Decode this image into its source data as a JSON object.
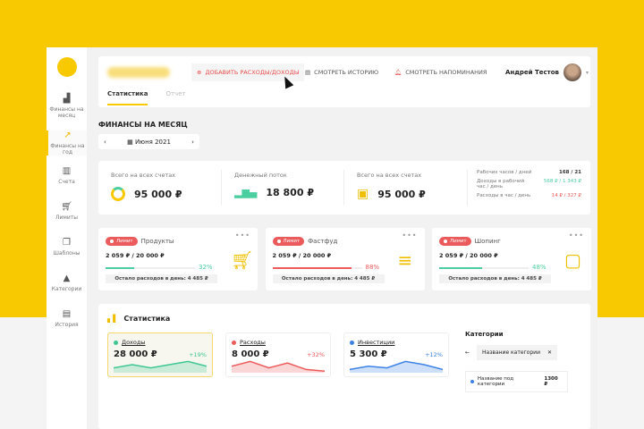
{
  "sidebar": {
    "items": [
      {
        "icon": "chart-bar-icon",
        "label": "Финансы на месяц"
      },
      {
        "icon": "chart-growth-icon",
        "label": "Финансы на год",
        "active": true
      },
      {
        "icon": "book-icon",
        "label": "Счета"
      },
      {
        "icon": "cart-icon",
        "label": "Лимиты"
      },
      {
        "icon": "documents-icon",
        "label": "Шаблоны"
      },
      {
        "icon": "shapes-icon",
        "label": "Категории"
      },
      {
        "icon": "history-icon",
        "label": "История"
      }
    ]
  },
  "header": {
    "add_label": "Добавить расходы/доходы",
    "history_label": "Смотреть историю",
    "reminders_label": "Смотреть напоминания",
    "user": "Андрей Тестов",
    "tabs": [
      "Статистика",
      "Отчет"
    ]
  },
  "page_title": "ФИНАНСЫ НА МЕСЯЦ",
  "date": {
    "value": "Июня 2021",
    "prev": "‹",
    "next": "›"
  },
  "summary": {
    "cols": [
      {
        "label": "Всего на всех счетах",
        "value": "95 000 ₽"
      },
      {
        "label": "Денежный поток",
        "value": "18 800 ₽"
      },
      {
        "label": "Всего на всех счетах",
        "value": "95 000 ₽"
      }
    ],
    "stats": [
      {
        "label": "Рабочих часов / дней",
        "value": "168 / 21"
      },
      {
        "label": "Доходы в рабочий час / день",
        "value": "568 ₽ / 1 343 ₽"
      },
      {
        "label": "Расходы в час / день",
        "value": "14 ₽ / 327 ₽"
      }
    ]
  },
  "limits": [
    {
      "badge": "Лимит",
      "name": "Продукты",
      "amount": "2 059 ₽ / 20 000 ₽",
      "percent": 32,
      "percent_label": "32%",
      "color": "#4ccfa0",
      "left": "Осталo расходов в день:  4 485 ₽",
      "icon": "cart-icon"
    },
    {
      "badge": "Лимит",
      "name": "Фастфуд",
      "amount": "2 059 ₽ / 20 000 ₽",
      "percent": 88,
      "percent_label": "88%",
      "color": "#ec5b5b",
      "left": "Осталo расходов в день:  4 485 ₽",
      "icon": "burger-icon"
    },
    {
      "badge": "Лимит",
      "name": "Шопинг",
      "amount": "2 059 ₽ / 20 000 ₽",
      "percent": 48,
      "percent_label": "48%",
      "color": "#4ccfa0",
      "left": "Осталo расходов в день:  4 485 ₽",
      "icon": "bag-icon"
    }
  ],
  "statistics": {
    "title": "Статистика",
    "cards": [
      {
        "name": "Доходы",
        "value": "28 000 ₽",
        "change": "+19%",
        "color": "#3ec795",
        "trend": [
          3,
          5,
          3,
          5,
          7,
          4
        ]
      },
      {
        "name": "Расходы",
        "value": "8 000 ₽",
        "change": "+32%",
        "color": "#ec5b5b",
        "trend": [
          4,
          7,
          3,
          6,
          2,
          1
        ]
      },
      {
        "name": "Инвестиции",
        "value": "5 300 ₽",
        "change": "+12%",
        "color": "#3d82e6",
        "trend": [
          2,
          4,
          3,
          7,
          5,
          2
        ]
      }
    ],
    "categories": {
      "title": "Категории",
      "chip": "Название категории",
      "sub_name": "Название под категории",
      "sub_value": "1300 ₽"
    }
  }
}
